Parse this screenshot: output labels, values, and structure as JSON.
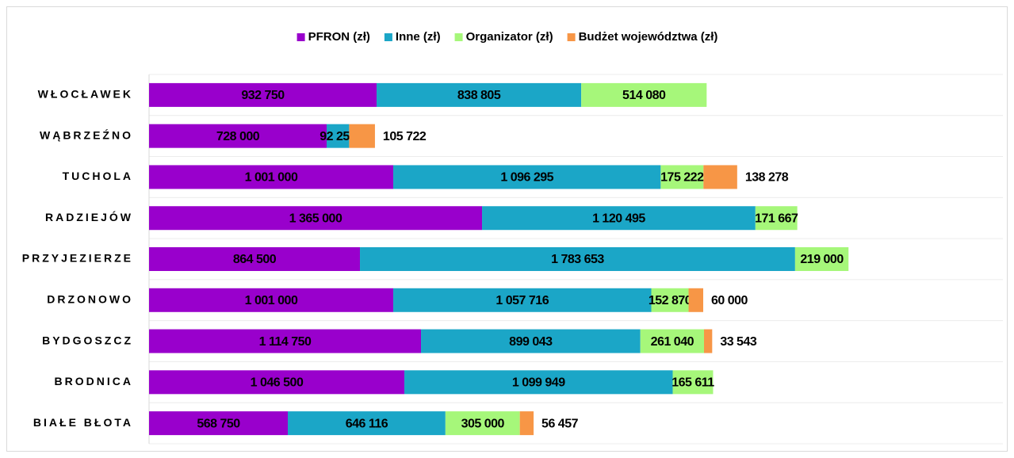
{
  "chart_data": {
    "type": "stacked-bar-horizontal",
    "categories": [
      "WŁOCŁAWEK",
      "WĄBRZEŹNO",
      "TUCHOLA",
      "RADZIEJÓW",
      "PRZYJEZIERZE",
      "DRZONOWO",
      "BYDGOSZCZ",
      "BRODNICA",
      "BIAŁE BŁOTA"
    ],
    "xlim": [
      0,
      3500000
    ],
    "legend": "top",
    "series": [
      {
        "name": "PFRON (zł)",
        "color": "#9900cc",
        "values": [
          932750,
          728000,
          1001000,
          1365000,
          864500,
          1001000,
          1114750,
          1046500,
          568750
        ],
        "value_labels": [
          "932 750",
          "728 000",
          "1 001 000",
          "1 365 000",
          "864 500",
          "1 001 000",
          "1 114 750",
          "1 046 500",
          "568 750"
        ]
      },
      {
        "name": "Inne (zł)",
        "color": "#1ba6c7",
        "values": [
          838805,
          92256,
          1096295,
          1120495,
          1783653,
          1057716,
          899043,
          1099949,
          646116
        ],
        "value_labels": [
          "838 805",
          "92 256",
          "1 096 295",
          "1 120 495",
          "1 783 653",
          "1 057 716",
          "899 043",
          "1 099 949",
          "646 116"
        ]
      },
      {
        "name": "Organizator (zł)",
        "color": "#a6f77a",
        "values": [
          514080,
          null,
          175222,
          171667,
          219000,
          152870,
          261040,
          165611,
          305000
        ],
        "value_labels": [
          "514 080",
          null,
          "175 222",
          "171 667",
          "219 000",
          "152 870",
          "261 040",
          "165 611",
          "305 000"
        ]
      },
      {
        "name": "Budżet województwa (zł)",
        "color": "#f79646",
        "label_position": "outside_end",
        "values": [
          null,
          105722,
          138278,
          null,
          null,
          60000,
          33543,
          null,
          56457
        ],
        "value_labels": [
          null,
          "105 722",
          "138 278",
          null,
          null,
          "60 000",
          "33 543",
          null,
          "56 457"
        ]
      }
    ]
  }
}
